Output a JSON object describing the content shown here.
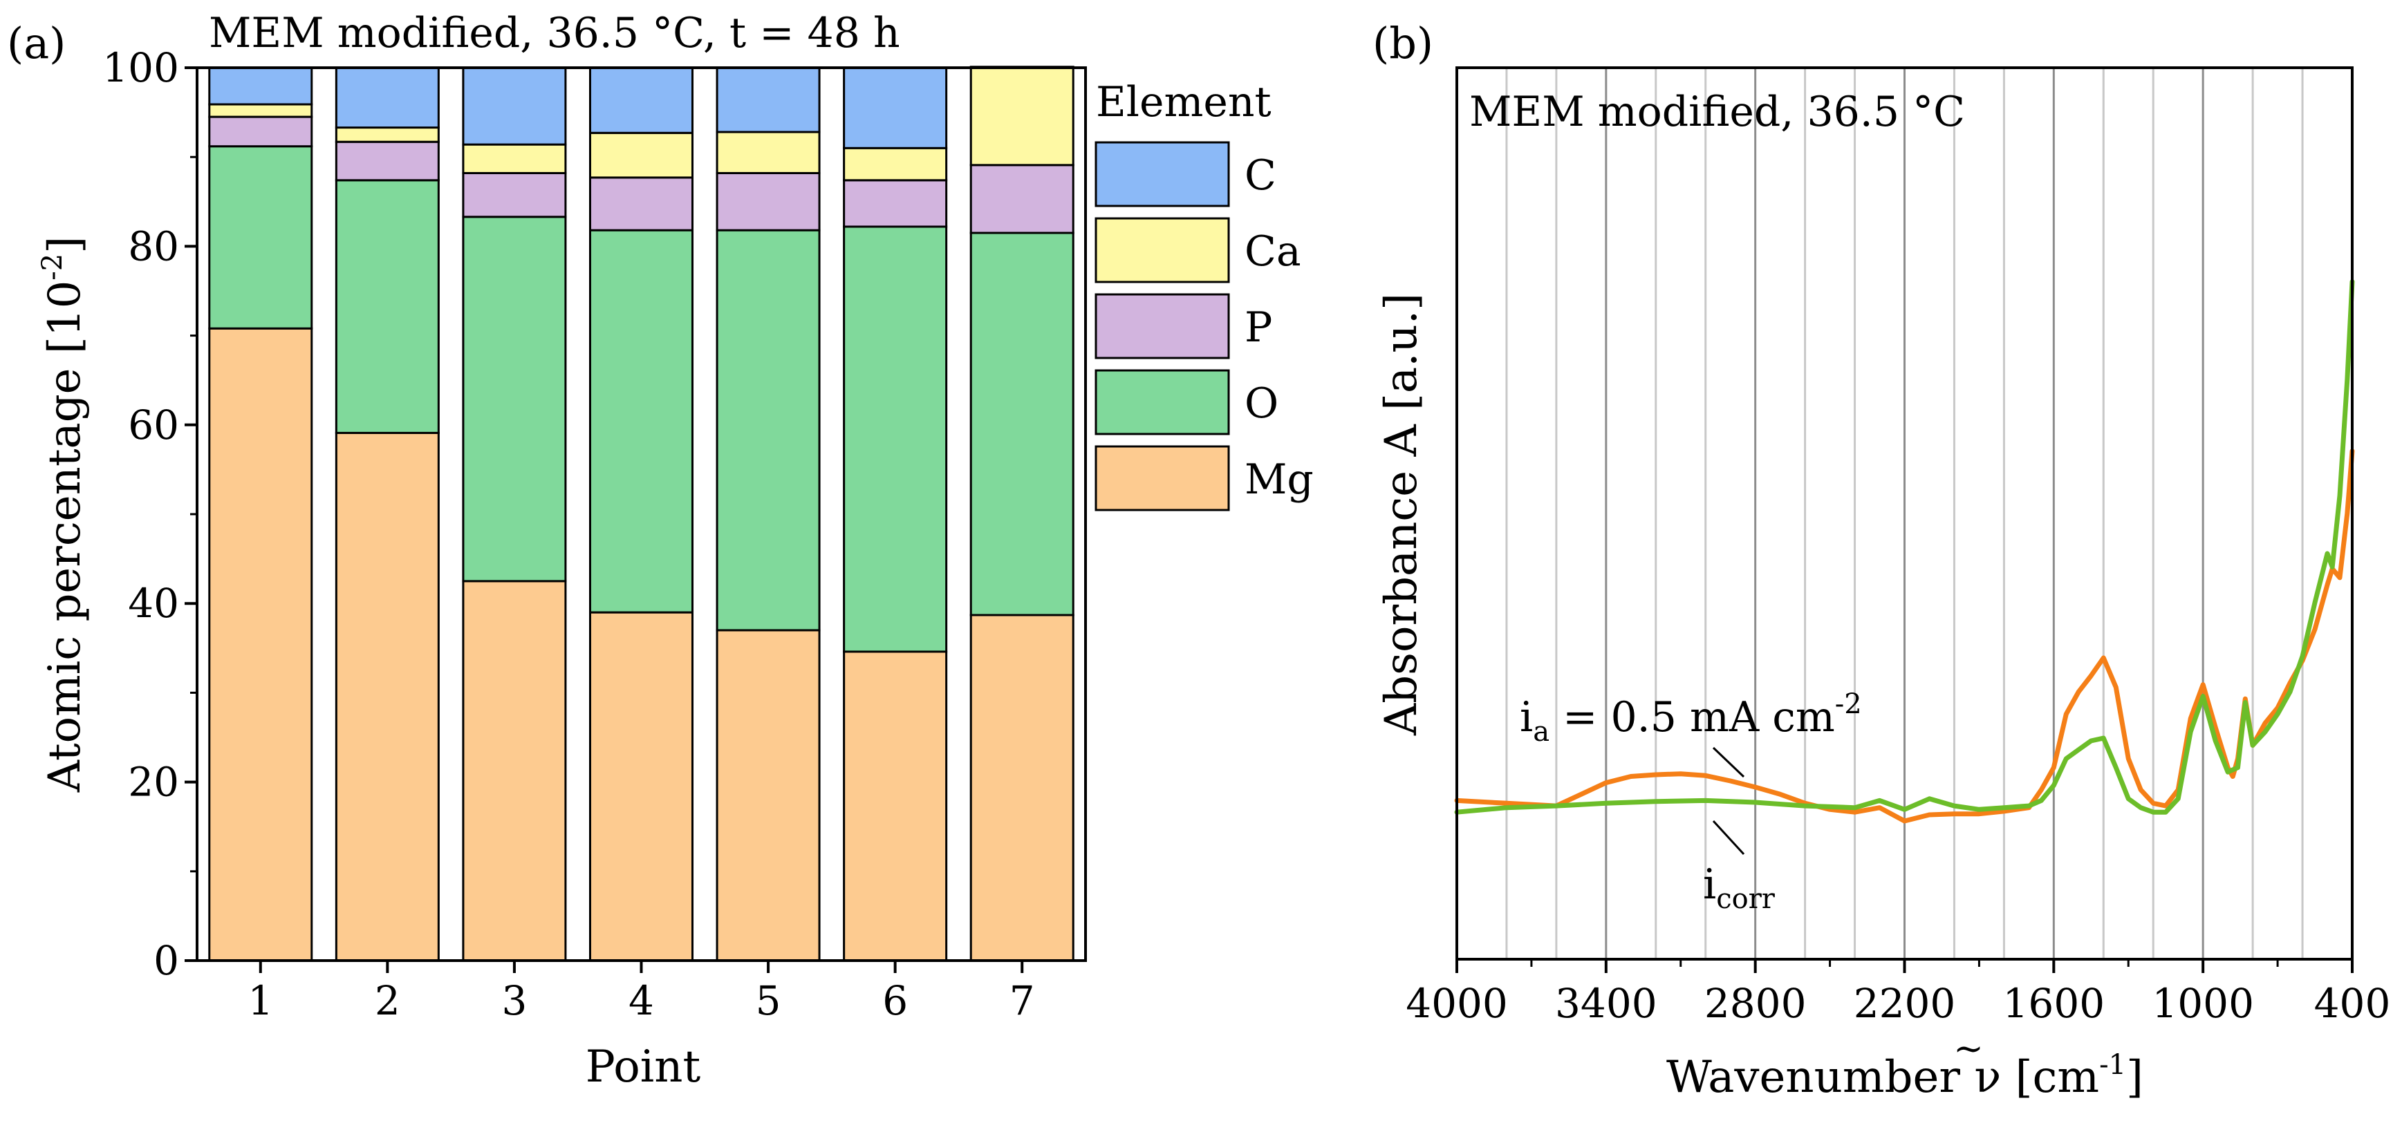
{
  "chart_data": [
    {
      "panel_label": "(a)",
      "type": "bar",
      "stacked": true,
      "title": "MEM modified, 36.5 °C, t = 48 h",
      "xlabel": "Point",
      "ylabel_main": "Atomic percentage [10",
      "ylabel_sup": "-2",
      "ylabel_end": "]",
      "ylim": [
        0,
        100
      ],
      "yticks": [
        "0",
        "20",
        "40",
        "60",
        "80",
        "100"
      ],
      "categories": [
        "1",
        "2",
        "3",
        "4",
        "5",
        "6",
        "7"
      ],
      "legend_title": "Element",
      "legend_placement": "right",
      "series": [
        {
          "name": "Mg",
          "color": "#FDCB90",
          "values": [
            70.8,
            59.1,
            42.5,
            39.0,
            37.0,
            34.6,
            38.7
          ]
        },
        {
          "name": "O",
          "color": "#80D99B",
          "values": [
            20.4,
            28.3,
            40.8,
            42.8,
            44.8,
            47.6,
            42.8
          ]
        },
        {
          "name": "P",
          "color": "#D2B4DE",
          "values": [
            3.3,
            4.3,
            4.9,
            5.9,
            6.4,
            5.2,
            7.6
          ]
        },
        {
          "name": "Ca",
          "color": "#FEF9A4",
          "values": [
            1.4,
            1.6,
            3.2,
            5.0,
            4.6,
            3.6,
            11.0
          ]
        },
        {
          "name": "C",
          "color": "#8BB9F7",
          "values": [
            4.1,
            6.7,
            8.6,
            7.3,
            7.2,
            9.0,
            0.0
          ]
        }
      ]
    },
    {
      "panel_label": "(b)",
      "type": "line",
      "title": "MEM modified, 36.5 °C",
      "xlabel_main": "Wavenumber",
      "xlabel_symbol": "ν",
      "xlabel_tilde": "~",
      "xlabel_unit": "[cm",
      "xlabel_sup": "-1",
      "xlabel_end": "]",
      "ylabel": "Absorbance A [a.u.]",
      "xlim": [
        4000,
        400
      ],
      "xticks": [
        "4000",
        "3400",
        "2800",
        "2200",
        "1600",
        "1000",
        "400"
      ],
      "ylim": [
        0,
        1
      ],
      "grid": "vertical",
      "series": [
        {
          "name": "i_a = 0.5 mA cm-2",
          "color": "#F57F17",
          "x": [
            4000,
            3800,
            3600,
            3500,
            3400,
            3300,
            3200,
            3100,
            3000,
            2900,
            2800,
            2700,
            2600,
            2500,
            2400,
            2300,
            2200,
            2100,
            2000,
            1900,
            1800,
            1700,
            1650,
            1600,
            1550,
            1500,
            1450,
            1400,
            1350,
            1300,
            1250,
            1200,
            1150,
            1100,
            1050,
            1000,
            950,
            900,
            880,
            860,
            830,
            800,
            750,
            700,
            650,
            600,
            550,
            500,
            480,
            450,
            420,
            400
          ],
          "y": [
            0.178,
            0.175,
            0.172,
            0.185,
            0.198,
            0.205,
            0.207,
            0.208,
            0.206,
            0.2,
            0.193,
            0.185,
            0.175,
            0.168,
            0.165,
            0.17,
            0.155,
            0.162,
            0.163,
            0.163,
            0.166,
            0.17,
            0.19,
            0.215,
            0.275,
            0.3,
            0.318,
            0.338,
            0.305,
            0.225,
            0.19,
            0.175,
            0.172,
            0.19,
            0.27,
            0.308,
            0.26,
            0.215,
            0.205,
            0.225,
            0.292,
            0.24,
            0.265,
            0.282,
            0.31,
            0.335,
            0.37,
            0.42,
            0.438,
            0.428,
            0.5,
            0.57
          ]
        },
        {
          "name": "i_corr",
          "color": "#6CBD29",
          "x": [
            4000,
            3800,
            3600,
            3400,
            3200,
            3000,
            2800,
            2600,
            2400,
            2300,
            2200,
            2100,
            2000,
            1900,
            1800,
            1700,
            1650,
            1600,
            1550,
            1500,
            1450,
            1400,
            1350,
            1300,
            1250,
            1200,
            1150,
            1100,
            1050,
            1000,
            950,
            900,
            860,
            830,
            800,
            750,
            700,
            650,
            600,
            550,
            500,
            480,
            450,
            420,
            400
          ],
          "y": [
            0.165,
            0.17,
            0.172,
            0.175,
            0.177,
            0.178,
            0.176,
            0.172,
            0.17,
            0.178,
            0.168,
            0.18,
            0.172,
            0.168,
            0.17,
            0.172,
            0.178,
            0.195,
            0.225,
            0.235,
            0.245,
            0.248,
            0.215,
            0.18,
            0.17,
            0.165,
            0.165,
            0.18,
            0.255,
            0.295,
            0.245,
            0.21,
            0.215,
            0.288,
            0.24,
            0.255,
            0.275,
            0.3,
            0.34,
            0.4,
            0.455,
            0.44,
            0.52,
            0.65,
            0.76
          ]
        }
      ],
      "annotations": [
        {
          "main": "i",
          "sub": "a",
          "rest": " = 0.5 mA cm",
          "sup": "-2"
        },
        {
          "main": "i",
          "sub": "corr"
        }
      ]
    }
  ]
}
